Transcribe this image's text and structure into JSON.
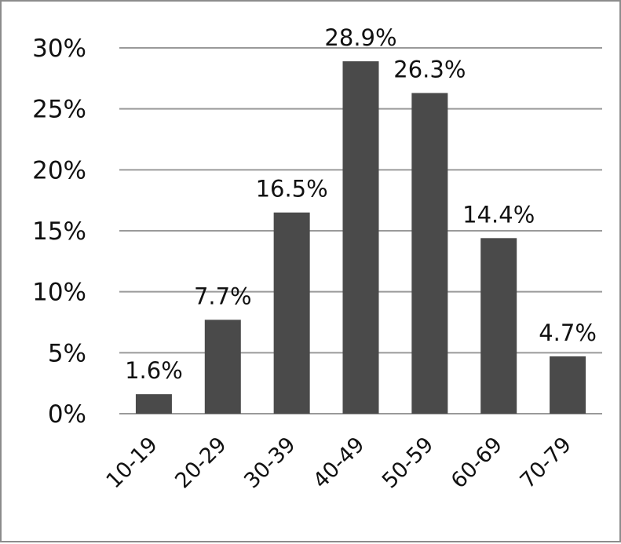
{
  "chart_data": {
    "type": "bar",
    "categories": [
      "10-19",
      "20-29",
      "30-39",
      "40-49",
      "50-59",
      "60-69",
      "70-79"
    ],
    "values": [
      1.6,
      7.7,
      16.5,
      28.9,
      26.3,
      14.4,
      4.7
    ],
    "data_labels": [
      "1.6%",
      "7.7%",
      "16.5%",
      "28.9%",
      "26.3%",
      "14.4%",
      "4.7%"
    ],
    "y_ticks": [
      0,
      5,
      10,
      15,
      20,
      25,
      30
    ],
    "y_tick_labels": [
      "0%",
      "5%",
      "10%",
      "15%",
      "20%",
      "25%",
      "30%"
    ],
    "ylim": [
      0,
      30
    ],
    "grid": true,
    "bar_color": "#4a4a4a",
    "grid_color": "#9a9a9a",
    "border_color": "#8c8c8c"
  }
}
